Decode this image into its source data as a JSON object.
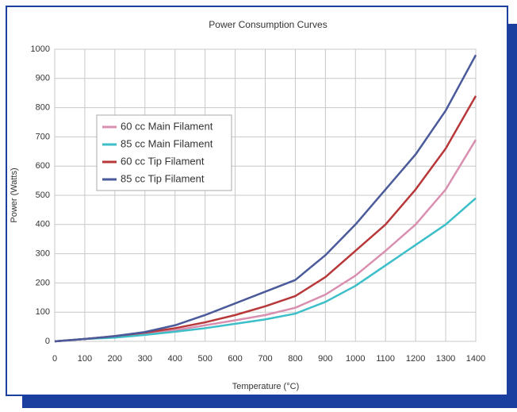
{
  "chart_data": {
    "type": "line",
    "title": "Power Consumption Curves",
    "x_label": "Temperature (°C)",
    "y_label": "Power (Watts)",
    "x": [
      0,
      100,
      200,
      300,
      400,
      500,
      600,
      700,
      800,
      900,
      1000,
      1100,
      1200,
      1300,
      1400
    ],
    "series": [
      {
        "name": "60 cc Main Filament",
        "color": "#d98fb0",
        "values": [
          0,
          8,
          15,
          25,
          38,
          55,
          72,
          90,
          115,
          160,
          225,
          310,
          400,
          520,
          690
        ]
      },
      {
        "name": "85 cc Main Filament",
        "color": "#3cbfc8",
        "values": [
          0,
          8,
          13,
          22,
          33,
          45,
          60,
          75,
          95,
          135,
          190,
          260,
          330,
          400,
          490
        ]
      },
      {
        "name": "60 cc Tip Filament",
        "color": "#b8383a",
        "values": [
          0,
          8,
          18,
          30,
          45,
          65,
          90,
          120,
          155,
          220,
          310,
          400,
          520,
          660,
          840
        ]
      },
      {
        "name": "85 cc Tip Filament",
        "color": "#4a5a9a",
        "values": [
          0,
          8,
          18,
          32,
          55,
          90,
          130,
          170,
          210,
          295,
          400,
          520,
          640,
          790,
          980
        ]
      }
    ],
    "xlim": [
      0,
      1400
    ],
    "xticks": [
      0,
      100,
      200,
      300,
      400,
      500,
      600,
      700,
      800,
      900,
      1000,
      1100,
      1200,
      1300,
      1400
    ],
    "ylim": [
      0,
      1000
    ],
    "yticks": [
      0,
      100,
      200,
      300,
      400,
      500,
      600,
      700,
      800,
      900,
      1000
    ],
    "grid": true
  }
}
